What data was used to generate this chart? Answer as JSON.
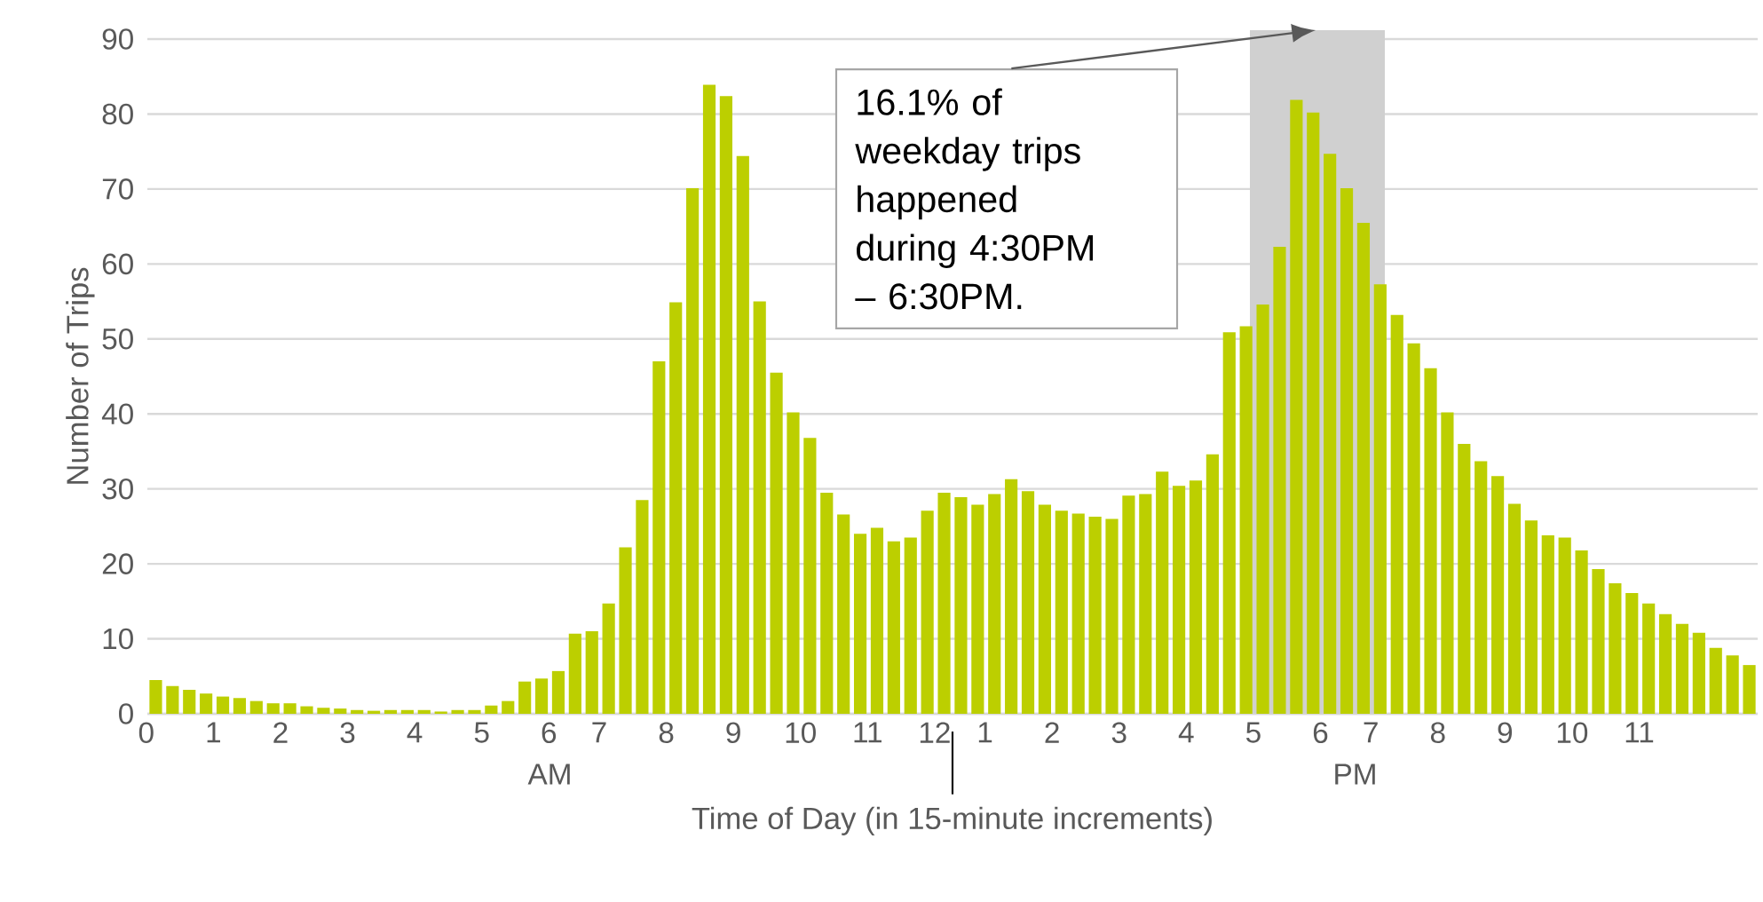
{
  "chart_data": {
    "type": "bar",
    "xlabel": "Time of Day (in 15-minute increments)",
    "ylabel": "Number of Trips",
    "categories": [
      "0",
      null,
      null,
      null,
      "1",
      null,
      null,
      null,
      "2",
      null,
      null,
      null,
      "3",
      null,
      null,
      null,
      "4",
      null,
      null,
      null,
      "5",
      null,
      null,
      null,
      "6",
      null,
      null,
      "7",
      null,
      null,
      null,
      "8",
      null,
      null,
      null,
      "9",
      null,
      null,
      null,
      "10",
      null,
      null,
      null,
      "11",
      null,
      null,
      null,
      "12",
      null,
      null,
      "1",
      null,
      null,
      null,
      "2",
      null,
      null,
      null,
      "3",
      null,
      null,
      null,
      "4",
      null,
      null,
      null,
      "5",
      null,
      null,
      null,
      "6",
      null,
      null,
      "7",
      null,
      null,
      null,
      "8",
      null,
      null,
      null,
      "9",
      null,
      null,
      null,
      "10",
      null,
      null,
      null,
      "11",
      null,
      null,
      null,
      null,
      null,
      null
    ],
    "values": [
      4.5,
      3.7,
      3.2,
      2.7,
      2.3,
      2.1,
      1.7,
      1.4,
      1.4,
      1.0,
      0.8,
      0.7,
      0.5,
      0.4,
      0.5,
      0.5,
      0.5,
      0.3,
      0.5,
      0.5,
      1.1,
      1.7,
      4.3,
      4.7,
      5.7,
      10.7,
      11.0,
      14.7,
      22.2,
      28.5,
      47.0,
      54.9,
      70.1,
      83.9,
      82.4,
      74.4,
      55.0,
      45.5,
      40.2,
      36.8,
      29.5,
      26.6,
      24.0,
      24.8,
      23.0,
      23.5,
      27.1,
      29.5,
      28.9,
      27.9,
      29.3,
      31.3,
      29.7,
      27.9,
      27.1,
      26.7,
      26.3,
      26.0,
      29.1,
      29.3,
      32.3,
      30.4,
      31.1,
      34.6,
      50.9,
      51.7,
      54.6,
      62.3,
      81.9,
      80.2,
      74.7,
      70.1,
      65.5,
      57.3,
      53.2,
      49.4,
      46.1,
      40.2,
      36.0,
      33.7,
      31.7,
      28.0,
      25.8,
      23.8,
      23.5,
      21.8,
      19.3,
      17.4,
      16.1,
      14.7,
      13.3,
      12.0,
      10.8,
      8.8,
      7.8,
      6.5
    ],
    "color": "#bccf00",
    "ylim": [
      0,
      90
    ],
    "yticks": [
      0,
      10,
      20,
      30,
      40,
      50,
      60,
      70,
      80,
      90
    ],
    "grid": "y",
    "annotations": [
      "AM",
      "PM",
      "16.1% of weekday trips happened during 4:30PM – 6:30PM."
    ]
  }
}
